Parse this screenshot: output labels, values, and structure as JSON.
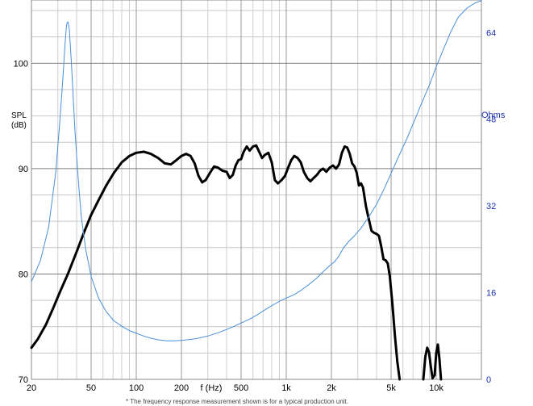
{
  "chart_data": {
    "type": "line",
    "title": "",
    "xlabel": "f (Hz)",
    "ylabel": "SPL\n(dB)",
    "y2label": "Ohms",
    "x_scale": "log",
    "xlim": [
      20,
      20000
    ],
    "ylim": [
      70,
      106
    ],
    "y2lim": [
      0,
      70
    ],
    "grid": true,
    "x_ticks": [
      {
        "value": 20,
        "label": "20"
      },
      {
        "value": 50,
        "label": "50"
      },
      {
        "value": 100,
        "label": "100"
      },
      {
        "value": 200,
        "label": "200"
      },
      {
        "value": 500,
        "label": "500"
      },
      {
        "value": 1000,
        "label": "1k"
      },
      {
        "value": 2000,
        "label": "2k"
      },
      {
        "value": 5000,
        "label": "5k"
      },
      {
        "value": 10000,
        "label": "10k"
      }
    ],
    "y_ticks": [
      {
        "value": 70,
        "label": "70"
      },
      {
        "value": 80,
        "label": "80"
      },
      {
        "value": 90,
        "label": "90"
      },
      {
        "value": 100,
        "label": "100"
      }
    ],
    "y2_ticks": [
      {
        "value": 0,
        "label": "0"
      },
      {
        "value": 16,
        "label": "16"
      },
      {
        "value": 32,
        "label": "32"
      },
      {
        "value": 48,
        "label": "48"
      },
      {
        "value": 64,
        "label": "64"
      }
    ],
    "series": [
      {
        "color": "#000000",
        "axis": "left",
        "points": [
          [
            20,
            73.0
          ],
          [
            22,
            73.8
          ],
          [
            25,
            75.2
          ],
          [
            28,
            76.8
          ],
          [
            31,
            78.3
          ],
          [
            35,
            80.0
          ],
          [
            40,
            82.1
          ],
          [
            45,
            84.0
          ],
          [
            50,
            85.6
          ],
          [
            56,
            87.0
          ],
          [
            63,
            88.4
          ],
          [
            71,
            89.6
          ],
          [
            80,
            90.6
          ],
          [
            90,
            91.2
          ],
          [
            100,
            91.5
          ],
          [
            112,
            91.6
          ],
          [
            125,
            91.4
          ],
          [
            140,
            91.0
          ],
          [
            155,
            90.5
          ],
          [
            170,
            90.4
          ],
          [
            185,
            90.8
          ],
          [
            200,
            91.2
          ],
          [
            215,
            91.4
          ],
          [
            230,
            91.2
          ],
          [
            245,
            90.5
          ],
          [
            260,
            89.3
          ],
          [
            275,
            88.7
          ],
          [
            290,
            88.9
          ],
          [
            310,
            89.6
          ],
          [
            330,
            90.2
          ],
          [
            350,
            90.1
          ],
          [
            375,
            89.8
          ],
          [
            400,
            89.7
          ],
          [
            420,
            89.1
          ],
          [
            440,
            89.4
          ],
          [
            460,
            90.3
          ],
          [
            480,
            90.8
          ],
          [
            500,
            90.9
          ],
          [
            520,
            91.6
          ],
          [
            545,
            92.1
          ],
          [
            570,
            91.7
          ],
          [
            600,
            92.1
          ],
          [
            630,
            92.2
          ],
          [
            660,
            91.6
          ],
          [
            690,
            91.0
          ],
          [
            720,
            91.3
          ],
          [
            760,
            91.5
          ],
          [
            800,
            90.6
          ],
          [
            840,
            88.9
          ],
          [
            880,
            88.6
          ],
          [
            930,
            88.9
          ],
          [
            980,
            89.3
          ],
          [
            1030,
            90.1
          ],
          [
            1080,
            90.8
          ],
          [
            1130,
            91.2
          ],
          [
            1190,
            91.0
          ],
          [
            1250,
            90.6
          ],
          [
            1310,
            89.7
          ],
          [
            1380,
            89.1
          ],
          [
            1450,
            88.8
          ],
          [
            1520,
            89.1
          ],
          [
            1600,
            89.4
          ],
          [
            1680,
            89.8
          ],
          [
            1760,
            90.0
          ],
          [
            1850,
            89.7
          ],
          [
            1950,
            90.1
          ],
          [
            2050,
            90.3
          ],
          [
            2150,
            90.0
          ],
          [
            2250,
            90.4
          ],
          [
            2350,
            91.5
          ],
          [
            2450,
            92.1
          ],
          [
            2550,
            92.0
          ],
          [
            2650,
            91.4
          ],
          [
            2750,
            90.5
          ],
          [
            2850,
            90.2
          ],
          [
            2950,
            89.6
          ],
          [
            3050,
            88.4
          ],
          [
            3150,
            88.6
          ],
          [
            3250,
            88.2
          ],
          [
            3400,
            86.4
          ],
          [
            3550,
            85.2
          ],
          [
            3700,
            84.1
          ],
          [
            3850,
            83.9
          ],
          [
            4000,
            83.8
          ],
          [
            4150,
            83.6
          ],
          [
            4300,
            82.6
          ],
          [
            4450,
            81.4
          ],
          [
            4600,
            81.3
          ],
          [
            4750,
            81.0
          ],
          [
            4900,
            79.8
          ],
          [
            5100,
            77.2
          ],
          [
            5300,
            74.2
          ],
          [
            5500,
            71.7
          ],
          [
            5700,
            70.0
          ]
        ]
      },
      {
        "color": "#000000",
        "axis": "left",
        "points": [
          [
            8200,
            70.0
          ],
          [
            8450,
            72.1
          ],
          [
            8700,
            73.0
          ],
          [
            8950,
            72.6
          ],
          [
            9200,
            71.2
          ],
          [
            9450,
            70.1
          ],
          [
            9750,
            70.4
          ],
          [
            10000,
            72.5
          ],
          [
            10250,
            73.3
          ],
          [
            10500,
            72.0
          ],
          [
            10750,
            70.0
          ]
        ]
      },
      {
        "color": "#4a90d9",
        "axis": "right",
        "points": [
          [
            20,
            18.0
          ],
          [
            23,
            22.0
          ],
          [
            26,
            28.0
          ],
          [
            29,
            38.0
          ],
          [
            31,
            48.0
          ],
          [
            32.5,
            56.0
          ],
          [
            33.5,
            62.0
          ],
          [
            34.3,
            65.5
          ],
          [
            35,
            66.0
          ],
          [
            35.8,
            64.5
          ],
          [
            37,
            58.0
          ],
          [
            39,
            46.0
          ],
          [
            41,
            37.0
          ],
          [
            43,
            30.0
          ],
          [
            46,
            24.0
          ],
          [
            50,
            19.0
          ],
          [
            56,
            15.0
          ],
          [
            63,
            12.5
          ],
          [
            71,
            10.8
          ],
          [
            80,
            9.8
          ],
          [
            90,
            9.0
          ],
          [
            100,
            8.5
          ],
          [
            112,
            8.0
          ],
          [
            125,
            7.6
          ],
          [
            140,
            7.3
          ],
          [
            160,
            7.1
          ],
          [
            180,
            7.1
          ],
          [
            200,
            7.2
          ],
          [
            250,
            7.5
          ],
          [
            300,
            8.0
          ],
          [
            350,
            8.6
          ],
          [
            400,
            9.2
          ],
          [
            450,
            9.8
          ],
          [
            500,
            10.4
          ],
          [
            560,
            11.0
          ],
          [
            630,
            11.8
          ],
          [
            710,
            12.7
          ],
          [
            800,
            13.6
          ],
          [
            900,
            14.4
          ],
          [
            1000,
            15.0
          ],
          [
            1120,
            15.6
          ],
          [
            1250,
            16.4
          ],
          [
            1400,
            17.4
          ],
          [
            1600,
            18.7
          ],
          [
            1800,
            20.1
          ],
          [
            1950,
            21.0
          ],
          [
            2100,
            21.7
          ],
          [
            2250,
            22.8
          ],
          [
            2400,
            24.2
          ],
          [
            2600,
            25.4
          ],
          [
            2850,
            26.5
          ],
          [
            3150,
            27.9
          ],
          [
            3550,
            30.0
          ],
          [
            4000,
            32.3
          ],
          [
            4500,
            35.2
          ],
          [
            5000,
            38.0
          ],
          [
            5600,
            41.1
          ],
          [
            6300,
            44.1
          ],
          [
            7100,
            47.5
          ],
          [
            8000,
            51.0
          ],
          [
            9000,
            54.3
          ],
          [
            10000,
            57.7
          ],
          [
            11200,
            61.0
          ],
          [
            12500,
            64.1
          ],
          [
            14000,
            66.8
          ],
          [
            16000,
            68.5
          ],
          [
            18000,
            69.4
          ],
          [
            20000,
            69.9
          ]
        ]
      }
    ],
    "footnote": "* The frequency response measurement shown is for a typical production unit."
  }
}
